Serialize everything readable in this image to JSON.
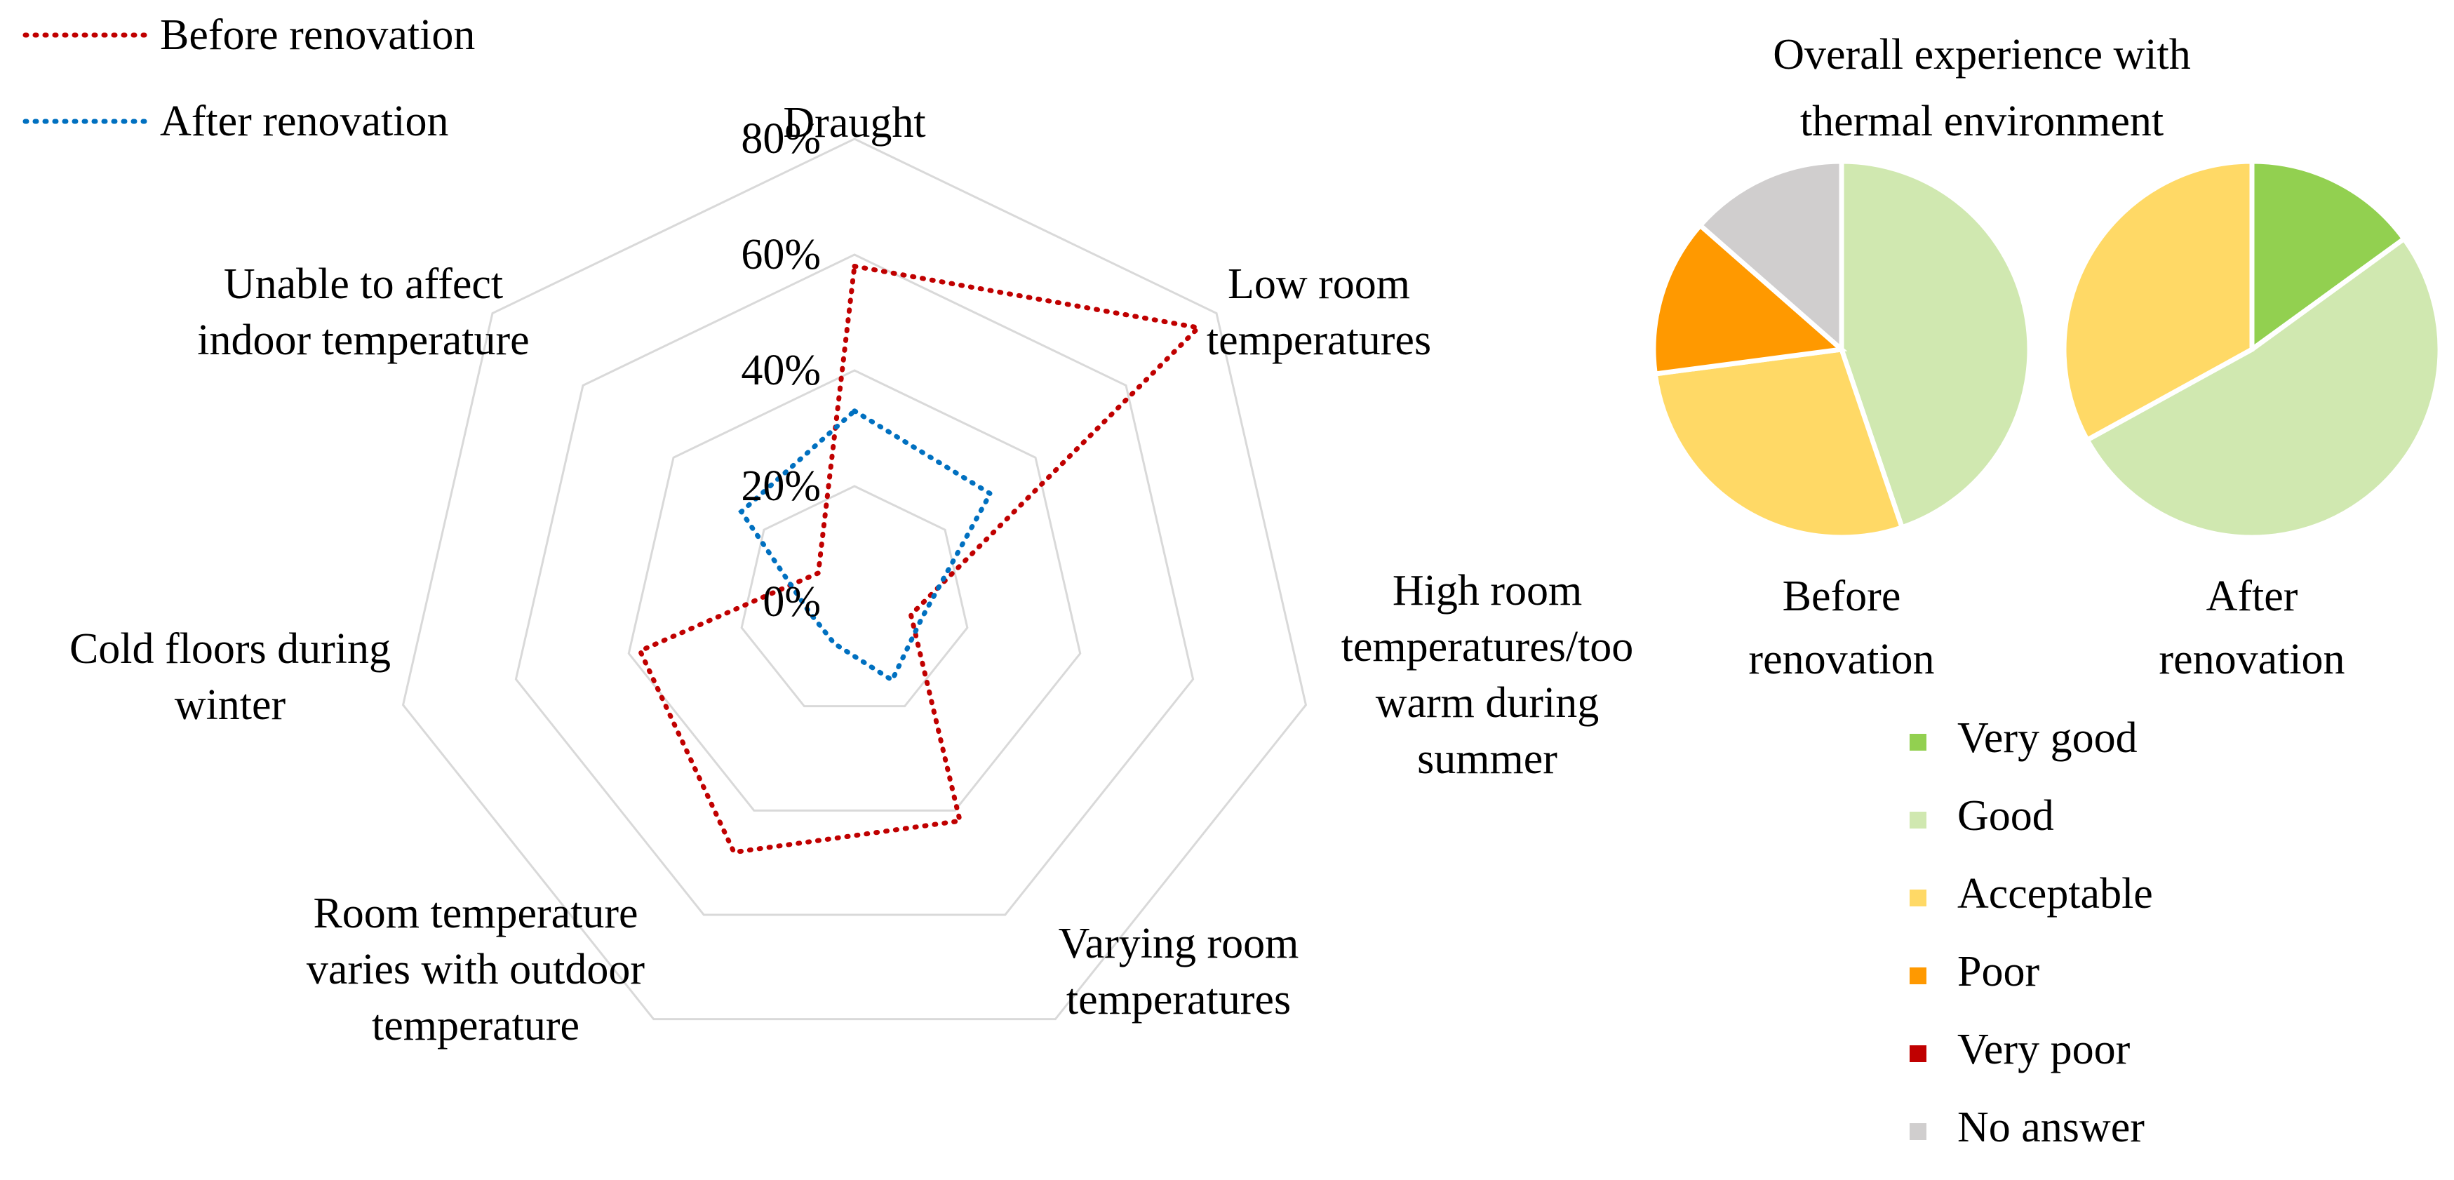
{
  "chart_data": [
    {
      "type": "radar",
      "axes": [
        [
          "Draught"
        ],
        [
          "Low room",
          "temperatures"
        ],
        [
          "High room",
          "temperatures/too",
          "warm during",
          "summer"
        ],
        [
          "Varying room",
          "temperatures"
        ],
        [
          "Room temperature",
          "varies with outdoor",
          "temperature"
        ],
        [
          "Cold floors during",
          "winter"
        ],
        [
          "Unable to affect",
          "indoor temperature"
        ]
      ],
      "ticks": [
        "0%",
        "20%",
        "40%",
        "60%",
        "80%"
      ],
      "range": [
        0,
        80
      ],
      "grid": true,
      "legend_position": "top-left",
      "series": [
        {
          "name": "Before renovation",
          "color": "#c00000",
          "values": [
            58,
            76,
            10,
            42,
            48,
            38,
            8
          ]
        },
        {
          "name": "After renovation",
          "color": "#0070c0",
          "values": [
            33,
            30,
            12,
            15,
            8,
            8,
            25
          ]
        }
      ]
    },
    {
      "type": "pie",
      "title": [
        "Overall experience with",
        "thermal environment"
      ],
      "categories": [
        "Very good",
        "Good",
        "Acceptable",
        "Poor",
        "Very poor",
        "No answer"
      ],
      "colors": [
        "#92d050",
        "#d0e8b0",
        "#ffd966",
        "#ff9900",
        "#c00000",
        "#d0cece"
      ],
      "legend_position": "bottom",
      "series": [
        {
          "name": [
            "Before",
            "renovation"
          ],
          "values": [
            0,
            43,
            27,
            13,
            0,
            13
          ]
        },
        {
          "name": [
            "After",
            "renovation"
          ],
          "values": [
            15,
            52,
            33,
            0,
            0,
            0
          ]
        }
      ]
    }
  ]
}
